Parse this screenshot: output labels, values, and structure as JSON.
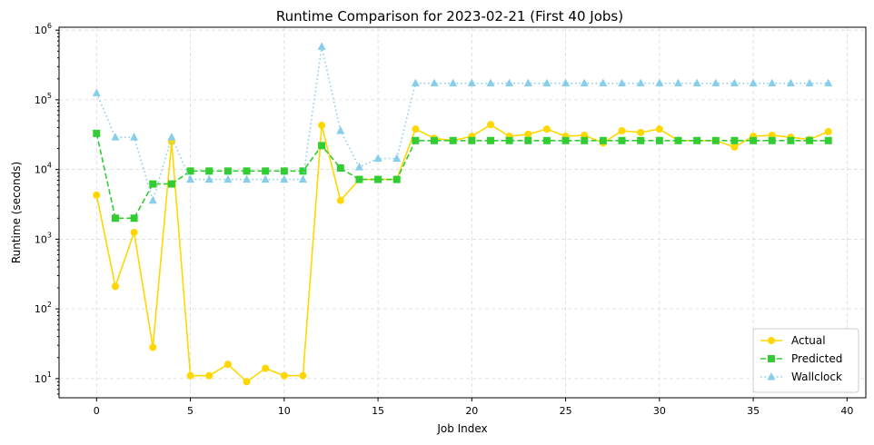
{
  "chart_data": {
    "type": "line",
    "title": "Runtime Comparison for 2023-02-21 (First 40 Jobs)",
    "xlabel": "Job Index",
    "ylabel": "Runtime (seconds)",
    "yscale": "log",
    "xlim": [
      -2,
      41
    ],
    "ylim": [
      5.3,
      1100000
    ],
    "xticks": [
      0,
      5,
      10,
      15,
      20,
      25,
      30,
      35,
      40
    ],
    "xtick_labels": [
      "0",
      "5",
      "10",
      "15",
      "20",
      "25",
      "30",
      "35",
      "40"
    ],
    "yticks": [
      10,
      100,
      1000,
      10000,
      100000,
      1000000
    ],
    "ytick_labels": [
      {
        "base": "10",
        "exp": "1"
      },
      {
        "base": "10",
        "exp": "2"
      },
      {
        "base": "10",
        "exp": "3"
      },
      {
        "base": "10",
        "exp": "4"
      },
      {
        "base": "10",
        "exp": "5"
      },
      {
        "base": "10",
        "exp": "6"
      }
    ],
    "grid": true,
    "legend_position": "bottom-right",
    "x": [
      0,
      1,
      2,
      3,
      4,
      5,
      6,
      7,
      8,
      9,
      10,
      11,
      12,
      13,
      14,
      15,
      16,
      17,
      18,
      19,
      20,
      21,
      22,
      23,
      24,
      25,
      26,
      27,
      28,
      29,
      30,
      31,
      32,
      33,
      34,
      35,
      36,
      37,
      38,
      39
    ],
    "series": [
      {
        "name": "Actual",
        "color": "#ffd700",
        "marker": "circle",
        "linestyle": "solid",
        "values": [
          4300,
          210,
          1250,
          28,
          25000,
          11,
          11,
          16,
          9,
          14,
          11,
          11,
          43000,
          3600,
          7200,
          7200,
          7200,
          38000,
          28000,
          26000,
          30000,
          44000,
          30000,
          32000,
          38000,
          30000,
          31000,
          24000,
          36000,
          34000,
          38000,
          26000,
          26000,
          26000,
          21000,
          30000,
          31000,
          29000,
          27000,
          35000
        ]
      },
      {
        "name": "Predicted",
        "color": "#32cd32",
        "marker": "square",
        "linestyle": "dashed",
        "values": [
          33000,
          2000,
          2000,
          6200,
          6200,
          9500,
          9500,
          9500,
          9500,
          9500,
          9500,
          9500,
          22000,
          10500,
          7200,
          7200,
          7200,
          26000,
          26000,
          26000,
          26000,
          26000,
          26000,
          26000,
          26000,
          26000,
          26000,
          26000,
          26000,
          26000,
          26000,
          26000,
          26000,
          26000,
          26000,
          26000,
          26000,
          26000,
          26000,
          26000
        ]
      },
      {
        "name": "Wallclock",
        "color": "#87ceeb",
        "marker": "triangle",
        "linestyle": "dotted",
        "values": [
          125000,
          29000,
          29000,
          3600,
          29000,
          7200,
          7200,
          7200,
          7200,
          7200,
          7200,
          7200,
          580000,
          36000,
          10800,
          14400,
          14400,
          172800,
          172800,
          172800,
          172800,
          172800,
          172800,
          172800,
          172800,
          172800,
          172800,
          172800,
          172800,
          172800,
          172800,
          172800,
          172800,
          172800,
          172800,
          172800,
          172800,
          172800,
          172800,
          172800
        ]
      }
    ]
  }
}
